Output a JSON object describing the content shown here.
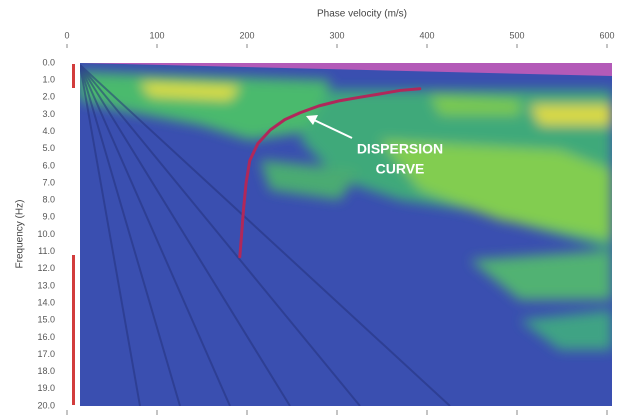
{
  "chart_data": {
    "type": "line",
    "x_label": "Phase velocity (m/s)",
    "y_label": "Frequency (Hz)",
    "annotation": [
      "DISPERSION",
      "CURVE"
    ],
    "x": [
      192,
      194,
      196,
      199,
      203,
      212,
      226,
      242,
      259,
      280,
      303,
      325,
      348,
      370,
      392
    ],
    "values": [
      11.3,
      10.0,
      8.6,
      7.0,
      5.7,
      4.7,
      3.9,
      3.3,
      2.9,
      2.5,
      2.2,
      2.0,
      1.8,
      1.6,
      1.5
    ],
    "color": "#b0285a",
    "xlim": [
      0,
      600
    ],
    "xticks": [
      0,
      100,
      200,
      300,
      400,
      500,
      600
    ],
    "ylim": [
      0,
      20
    ],
    "yticks": [
      {
        "value": 0,
        "label": "0.0"
      },
      {
        "value": 1,
        "label": "1.0"
      },
      {
        "value": 2,
        "label": "2.0"
      },
      {
        "value": 3,
        "label": "3.0"
      },
      {
        "value": 4,
        "label": "4.0"
      },
      {
        "value": 5,
        "label": "5.0"
      },
      {
        "value": 6,
        "label": "6.0"
      },
      {
        "value": 7,
        "label": "7.0"
      },
      {
        "value": 8,
        "label": "8.0"
      },
      {
        "value": 9,
        "label": "9.0"
      },
      {
        "value": 10,
        "label": "10.0"
      },
      {
        "value": 11,
        "label": "11.0"
      },
      {
        "value": 12,
        "label": "12.0"
      },
      {
        "value": 13,
        "label": "13.0"
      },
      {
        "value": 14,
        "label": "14.0"
      },
      {
        "value": 15,
        "label": "15.0"
      },
      {
        "value": 16,
        "label": "16.0"
      },
      {
        "value": 17,
        "label": "17.0"
      },
      {
        "value": 18,
        "label": "18.0"
      },
      {
        "value": 19,
        "label": "19.0"
      },
      {
        "value": 20,
        "label": "20.0"
      }
    ],
    "y_inverted": true
  }
}
